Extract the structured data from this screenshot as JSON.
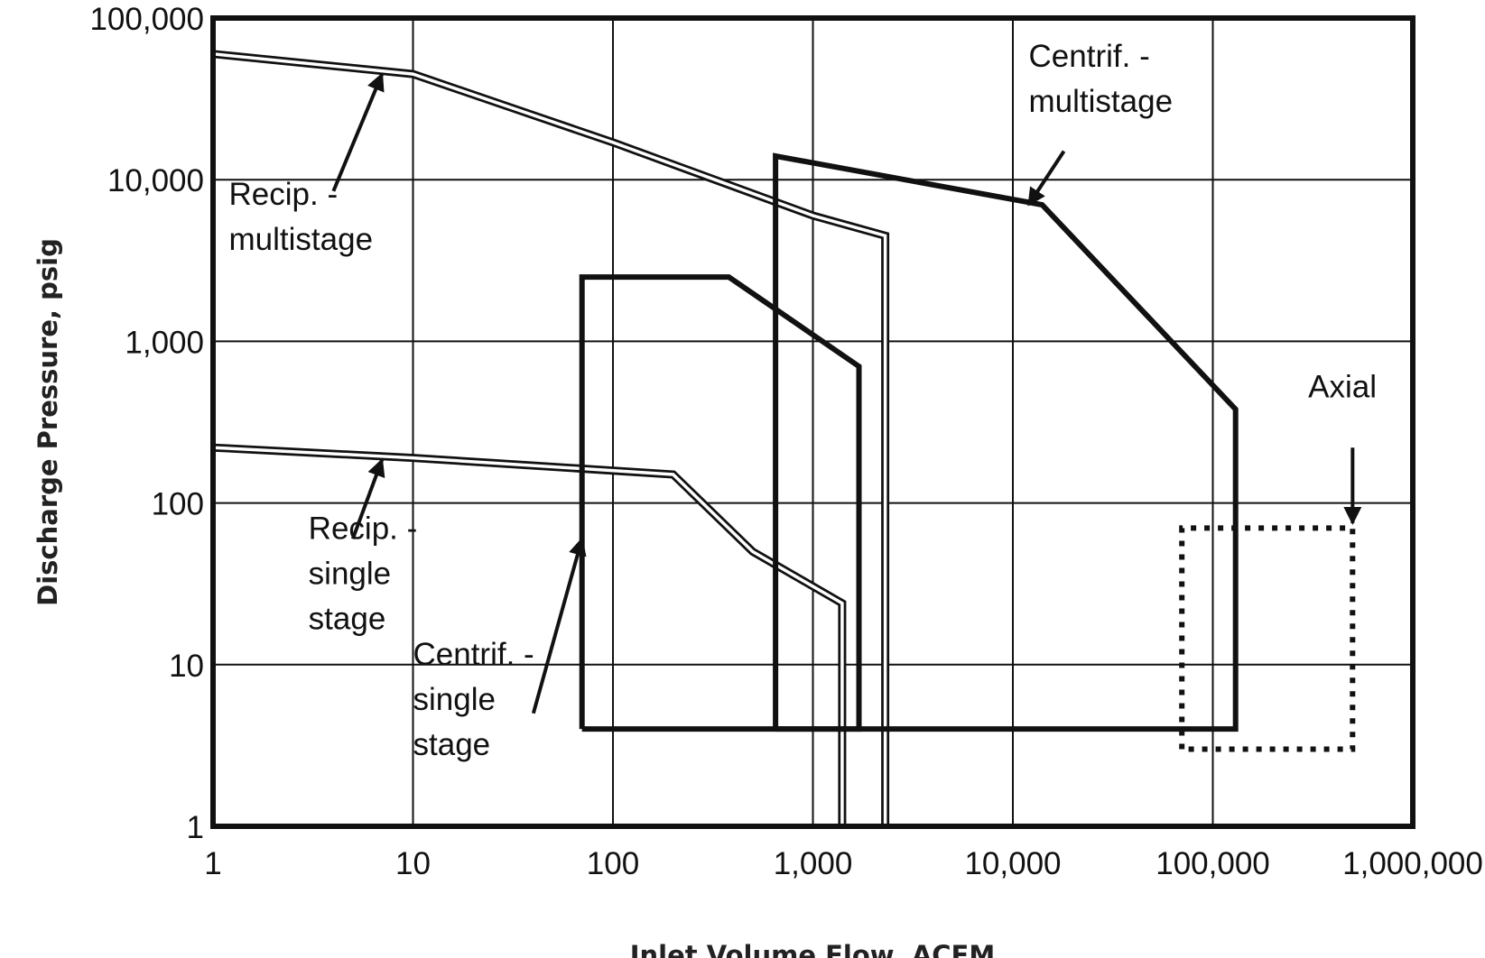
{
  "chart_data": {
    "type": "line",
    "title": "",
    "xlabel": "Inlet Volume Flow, ACFM",
    "ylabel": "Discharge Pressure, psig",
    "xscale": "log",
    "yscale": "log",
    "xlim": [
      1,
      1000000
    ],
    "ylim": [
      1,
      100000
    ],
    "grid": true,
    "x_tick_labels": [
      "1",
      "10",
      "100",
      "1,000",
      "10,000",
      "100,000",
      "1,000,000"
    ],
    "x_tick_values": [
      1,
      10,
      100,
      1000,
      10000,
      100000,
      1000000
    ],
    "y_tick_labels": [
      "1",
      "10",
      "100",
      "1,000",
      "10,000",
      "100,000"
    ],
    "y_tick_values": [
      1,
      10,
      100,
      1000,
      10000,
      100000
    ],
    "series": [
      {
        "name": "Recip. - multistage",
        "style": "double",
        "x": [
          1,
          10,
          100,
          1000,
          2300,
          2300
        ],
        "y": [
          60000,
          45000,
          17000,
          6000,
          4500,
          1
        ]
      },
      {
        "name": "Recip. - single stage",
        "style": "double",
        "x": [
          1,
          10,
          200,
          500,
          1400,
          1400
        ],
        "y": [
          220,
          190,
          150,
          50,
          24,
          1
        ]
      },
      {
        "name": "Centrif. - single stage",
        "style": "thick",
        "x": [
          70,
          70,
          380,
          1700,
          1700,
          70
        ],
        "y": [
          4,
          2500,
          2500,
          700,
          4,
          4
        ]
      },
      {
        "name": "Centrif. - multistage",
        "style": "thick",
        "x": [
          650,
          650,
          14000,
          130000,
          130000,
          650
        ],
        "y": [
          4,
          14000,
          7000,
          380,
          4,
          4
        ]
      },
      {
        "name": "Axial",
        "style": "dotted",
        "x": [
          70000,
          70000,
          500000,
          500000,
          70000
        ],
        "y": [
          3,
          70,
          70,
          3,
          3
        ]
      }
    ],
    "annotations": [
      {
        "series": "Recip. - multistage",
        "lines": [
          "Recip. -",
          "multistage"
        ]
      },
      {
        "series": "Recip. - single stage",
        "lines": [
          "Recip. -",
          "single",
          "stage"
        ]
      },
      {
        "series": "Centrif. - single stage",
        "lines": [
          "Centrif. -",
          "single",
          "stage"
        ]
      },
      {
        "series": "Centrif. - multistage",
        "lines": [
          "Centrif. -",
          "multistage"
        ]
      },
      {
        "series": "Axial",
        "lines": [
          "Axial"
        ]
      }
    ]
  }
}
